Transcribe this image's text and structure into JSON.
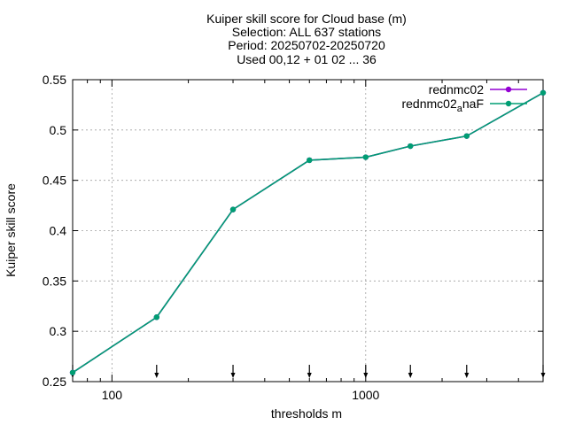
{
  "chart_data": {
    "type": "line",
    "title_lines": [
      "Kuiper skill score  for Cloud base (m)",
      "Selection: ALL    637 stations",
      "Period: 20250702-20250720",
      "Used 00,12 + 01 02 ... 36"
    ],
    "xlabel": "thresholds m",
    "ylabel": "Kuiper skill score",
    "x_scale": "log",
    "xlim": [
      70,
      5000
    ],
    "ylim": [
      0.25,
      0.55
    ],
    "x_ticks": [
      100,
      1000
    ],
    "x_tick_labels": [
      "100",
      "1000"
    ],
    "y_ticks": [
      0.25,
      0.3,
      0.35,
      0.4,
      0.45,
      0.5,
      0.55
    ],
    "y_tick_labels": [
      "0.25",
      "0.3",
      "0.35",
      "0.4",
      "0.45",
      "0.5",
      "0.55"
    ],
    "grid": true,
    "legend_position": "top-right",
    "x": [
      70,
      150,
      300,
      600,
      1000,
      1500,
      2500,
      5000
    ],
    "series": [
      {
        "name": "rednmc02",
        "color": "#9400d3",
        "values": [
          0.259,
          0.314,
          0.421,
          0.47,
          0.473,
          0.484,
          0.494,
          0.537
        ]
      },
      {
        "name": "rednmc02",
        "name_subscript": "a",
        "name_suffix": "naF",
        "color": "#009e73",
        "values": [
          0.259,
          0.314,
          0.421,
          0.47,
          0.473,
          0.484,
          0.494,
          0.537
        ]
      }
    ],
    "threshold_markers": [
      70,
      150,
      300,
      600,
      1000,
      1500,
      2500,
      5000
    ]
  }
}
